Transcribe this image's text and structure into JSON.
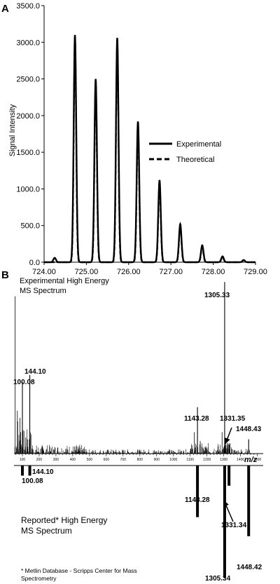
{
  "panel_a": {
    "label": "A",
    "legend": {
      "experimental": "Experimental",
      "theoretical": "Theoretical"
    }
  },
  "panel_b": {
    "label": "B",
    "xlabel": "m/z",
    "upper_title": [
      "Experimental High Energy",
      "MS Spectrum"
    ],
    "lower_title": [
      "Reported* High Energy",
      "MS Spectrum"
    ],
    "footnote": [
      "* Metlin Database - Scripps Center for Mass",
      "Spectrometry"
    ]
  },
  "chart_data": [
    {
      "type": "line",
      "panel": "A",
      "title": "",
      "xlabel": "",
      "ylabel": "Signal Intensity",
      "xlim": [
        724.0,
        729.0
      ],
      "ylim": [
        0.0,
        3500.0
      ],
      "x_ticks": [
        "724.00",
        "725.00",
        "726.00",
        "727.00",
        "728.00",
        "729.00"
      ],
      "y_ticks": [
        "0.0",
        "500.0",
        "1000.0",
        "1500.0",
        "2000.0",
        "2500.0",
        "3000.0",
        "3500.0"
      ],
      "series": [
        {
          "name": "Experimental",
          "style": "solid",
          "peaks": [
            {
              "x": 724.25,
              "y": 60
            },
            {
              "x": 724.73,
              "y": 3100
            },
            {
              "x": 725.22,
              "y": 2500
            },
            {
              "x": 725.73,
              "y": 3060
            },
            {
              "x": 726.22,
              "y": 1920
            },
            {
              "x": 726.73,
              "y": 1120
            },
            {
              "x": 727.22,
              "y": 520
            },
            {
              "x": 727.74,
              "y": 230
            },
            {
              "x": 728.22,
              "y": 80
            },
            {
              "x": 728.72,
              "y": 30
            }
          ]
        },
        {
          "name": "Theoretical",
          "style": "dashed",
          "peaks": [
            {
              "x": 724.73,
              "y": 3080
            },
            {
              "x": 725.22,
              "y": 2470
            },
            {
              "x": 725.73,
              "y": 3040
            },
            {
              "x": 726.22,
              "y": 1900
            },
            {
              "x": 726.73,
              "y": 1100
            },
            {
              "x": 727.22,
              "y": 500
            },
            {
              "x": 727.74,
              "y": 210
            },
            {
              "x": 728.22,
              "y": 70
            },
            {
              "x": 728.72,
              "y": 20
            }
          ]
        }
      ]
    },
    {
      "type": "bar",
      "panel": "B",
      "xlabel": "m/z",
      "xlim": [
        50,
        1510
      ],
      "x_ticks": [
        "100",
        "200",
        "300",
        "400",
        "500",
        "600",
        "700",
        "800",
        "900",
        "1000",
        "1100",
        "1200",
        "1300",
        "1400",
        "1500"
      ],
      "series": [
        {
          "name": "Experimental High Energy MS Spectrum",
          "direction": "up",
          "labeled_peaks": [
            {
              "mz": 100.08,
              "label": "100.08",
              "rel": 0.4
            },
            {
              "mz": 144.1,
              "label": "144.10",
              "rel": 0.44
            },
            {
              "mz": 1143.28,
              "label": "1143.28",
              "rel": 0.26
            },
            {
              "mz": 1305.33,
              "label": "1305.33",
              "rel": 0.96
            },
            {
              "mz": 1331.35,
              "label": "1331.35",
              "rel": 0.05
            },
            {
              "mz": 1448.43,
              "label": "1448.43",
              "rel": 0.08
            }
          ]
        },
        {
          "name": "Reported* High Energy MS Spectrum",
          "direction": "down",
          "labeled_peaks": [
            {
              "mz": 100.08,
              "label": "100.08",
              "rel": 0.09
            },
            {
              "mz": 144.1,
              "label": "144.10",
              "rel": 0.09
            },
            {
              "mz": 1143.28,
              "label": "1143.28",
              "rel": 0.46
            },
            {
              "mz": 1305.34,
              "label": "1305.34",
              "rel": 1.0
            },
            {
              "mz": 1331.34,
              "label": "1331.34",
              "rel": 0.18
            },
            {
              "mz": 1448.42,
              "label": "1448.42",
              "rel": 0.63
            }
          ]
        }
      ]
    }
  ]
}
